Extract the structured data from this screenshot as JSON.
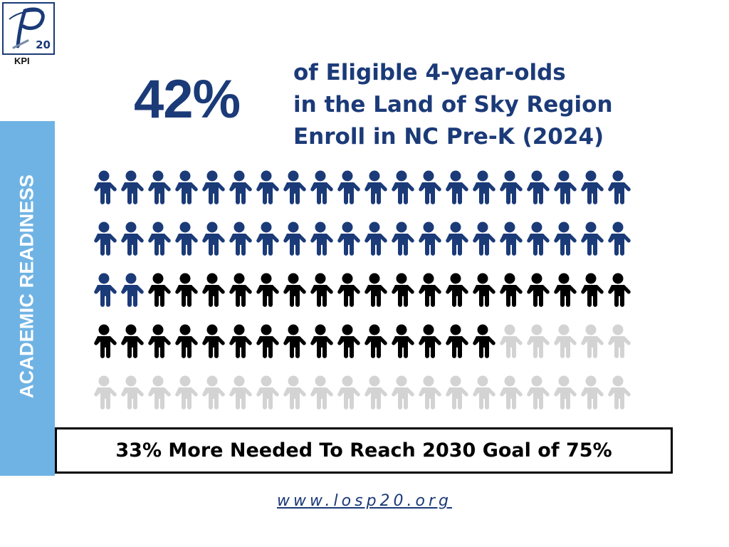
{
  "logo": {
    "number": "20",
    "caption": "KPI"
  },
  "sidebar": {
    "label": "ACADEMIC READINESS"
  },
  "headline": {
    "percent": "42%",
    "lines": [
      "of Eligible 4-year-olds",
      "in the Land of Sky Region",
      "Enroll in NC Pre-K (2024)"
    ]
  },
  "chart_data": {
    "type": "pictogram",
    "total_icons": 100,
    "rows": 5,
    "icons_per_row": 20,
    "series": [
      {
        "value": 42,
        "color": "#1b3a78"
      },
      {
        "value": 33,
        "color": "#000000"
      },
      {
        "value": 25,
        "color": "#d3d3d3"
      }
    ]
  },
  "goal": {
    "text": "33% More Needed To Reach 2030 Goal of 75%"
  },
  "footer": {
    "url": "www.losp20.org"
  }
}
